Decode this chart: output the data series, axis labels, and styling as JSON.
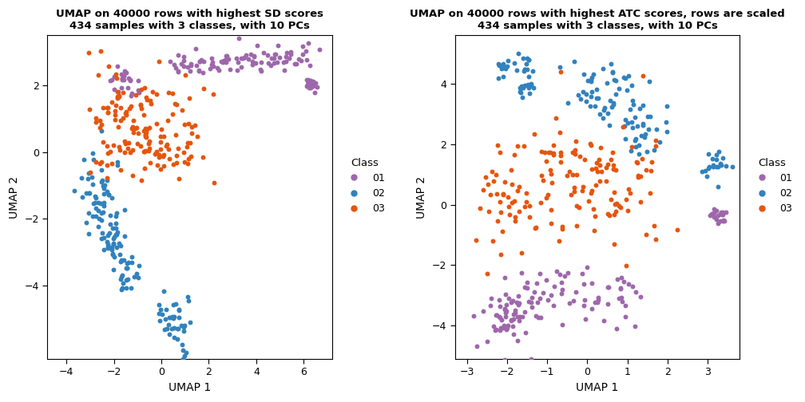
{
  "plot1_title": "UMAP on 40000 rows with highest SD scores\n434 samples with 3 classes, with 10 PCs",
  "plot2_title": "UMAP on 40000 rows with highest ATC scores, rows are scaled\n434 samples with 3 classes, with 10 PCs",
  "xlabel": "UMAP 1",
  "ylabel": "UMAP 2",
  "legend_title": "Class",
  "classes": [
    "01",
    "02",
    "03"
  ],
  "colors": {
    "01": "#9E67AB",
    "02": "#3182BD",
    "03": "#E6550D"
  },
  "plot1_xlim": [
    -4.8,
    7.2
  ],
  "plot1_ylim": [
    -6.2,
    3.5
  ],
  "plot1_xticks": [
    -4,
    -2,
    0,
    2,
    4,
    6
  ],
  "plot1_yticks": [
    -4,
    -2,
    0,
    2
  ],
  "plot2_xlim": [
    -3.3,
    3.8
  ],
  "plot2_ylim": [
    -5.1,
    5.6
  ],
  "plot2_xticks": [
    -3,
    -2,
    -1,
    0,
    1,
    2,
    3
  ],
  "plot2_yticks": [
    -4,
    -2,
    0,
    2,
    4
  ],
  "point_size": 18,
  "bg_color": "#FFFFFF",
  "seed1": 42,
  "seed2": 99
}
